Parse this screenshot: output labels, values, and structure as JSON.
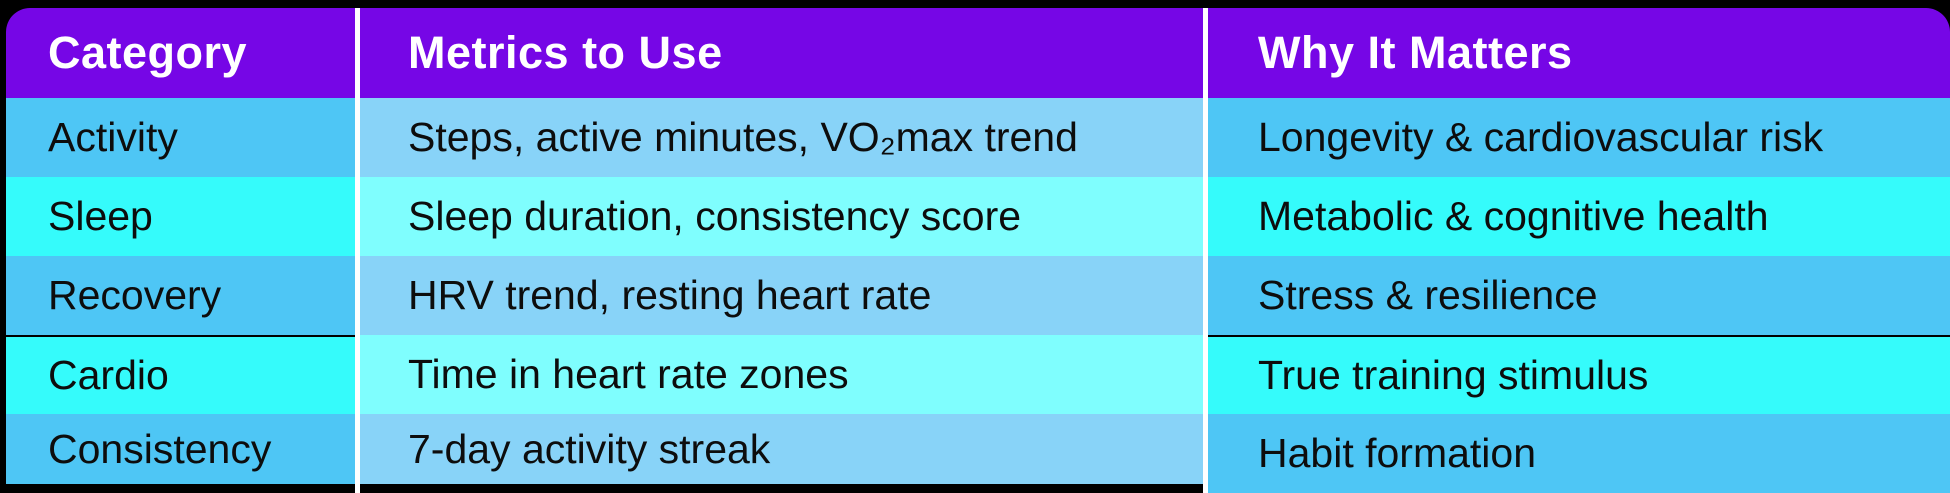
{
  "colors": {
    "purple": "#7606e6",
    "blue": "#4ec6f5",
    "cyan": "#35fbfb",
    "blue-light": "#88d3f8",
    "cyan-light": "#7ffefe",
    "divider": "#ffffff",
    "header-text": "#ffffff",
    "body-text": "#0d0d0d",
    "bg": "#000000"
  },
  "chart_data": {
    "type": "table",
    "title": "",
    "columns": [
      "Category",
      "Metrics to Use",
      "Why It Matters"
    ],
    "rows": [
      [
        "Activity",
        "Steps, active minutes, VO₂max trend",
        "Longevity & cardiovascular risk"
      ],
      [
        "Sleep",
        "Sleep duration, consistency score",
        "Metabolic & cognitive health"
      ],
      [
        "Recovery",
        "HRV trend, resting heart rate",
        "Stress & resilience"
      ],
      [
        "Cardio",
        "Time in heart rate zones",
        "True training stimulus"
      ],
      [
        "Consistency",
        "7-day activity streak",
        "Habit formation"
      ]
    ],
    "layout_hints": {
      "header_bg": "purple",
      "row_palette_odd": "blue",
      "row_palette_even": "cyan",
      "middle_column_tint": "lighter",
      "column_dividers": "white"
    }
  },
  "table": {
    "header": {
      "category": "Category",
      "metrics": "Metrics to Use",
      "why": "Why It Matters"
    },
    "rows": [
      {
        "category": "Activity",
        "metrics": "Steps, active minutes, VO₂max trend",
        "why": "Longevity & cardiovascular risk"
      },
      {
        "category": "Sleep",
        "metrics": "Sleep duration, consistency score",
        "why": "Metabolic & cognitive health"
      },
      {
        "category": "Recovery",
        "metrics": "HRV trend, resting heart rate",
        "why": "Stress & resilience"
      },
      {
        "category": "Cardio",
        "metrics": "Time in heart rate zones",
        "why": "True training stimulus"
      },
      {
        "category": "Consistency",
        "metrics": "7-day activity streak",
        "why": "Habit formation"
      }
    ]
  }
}
